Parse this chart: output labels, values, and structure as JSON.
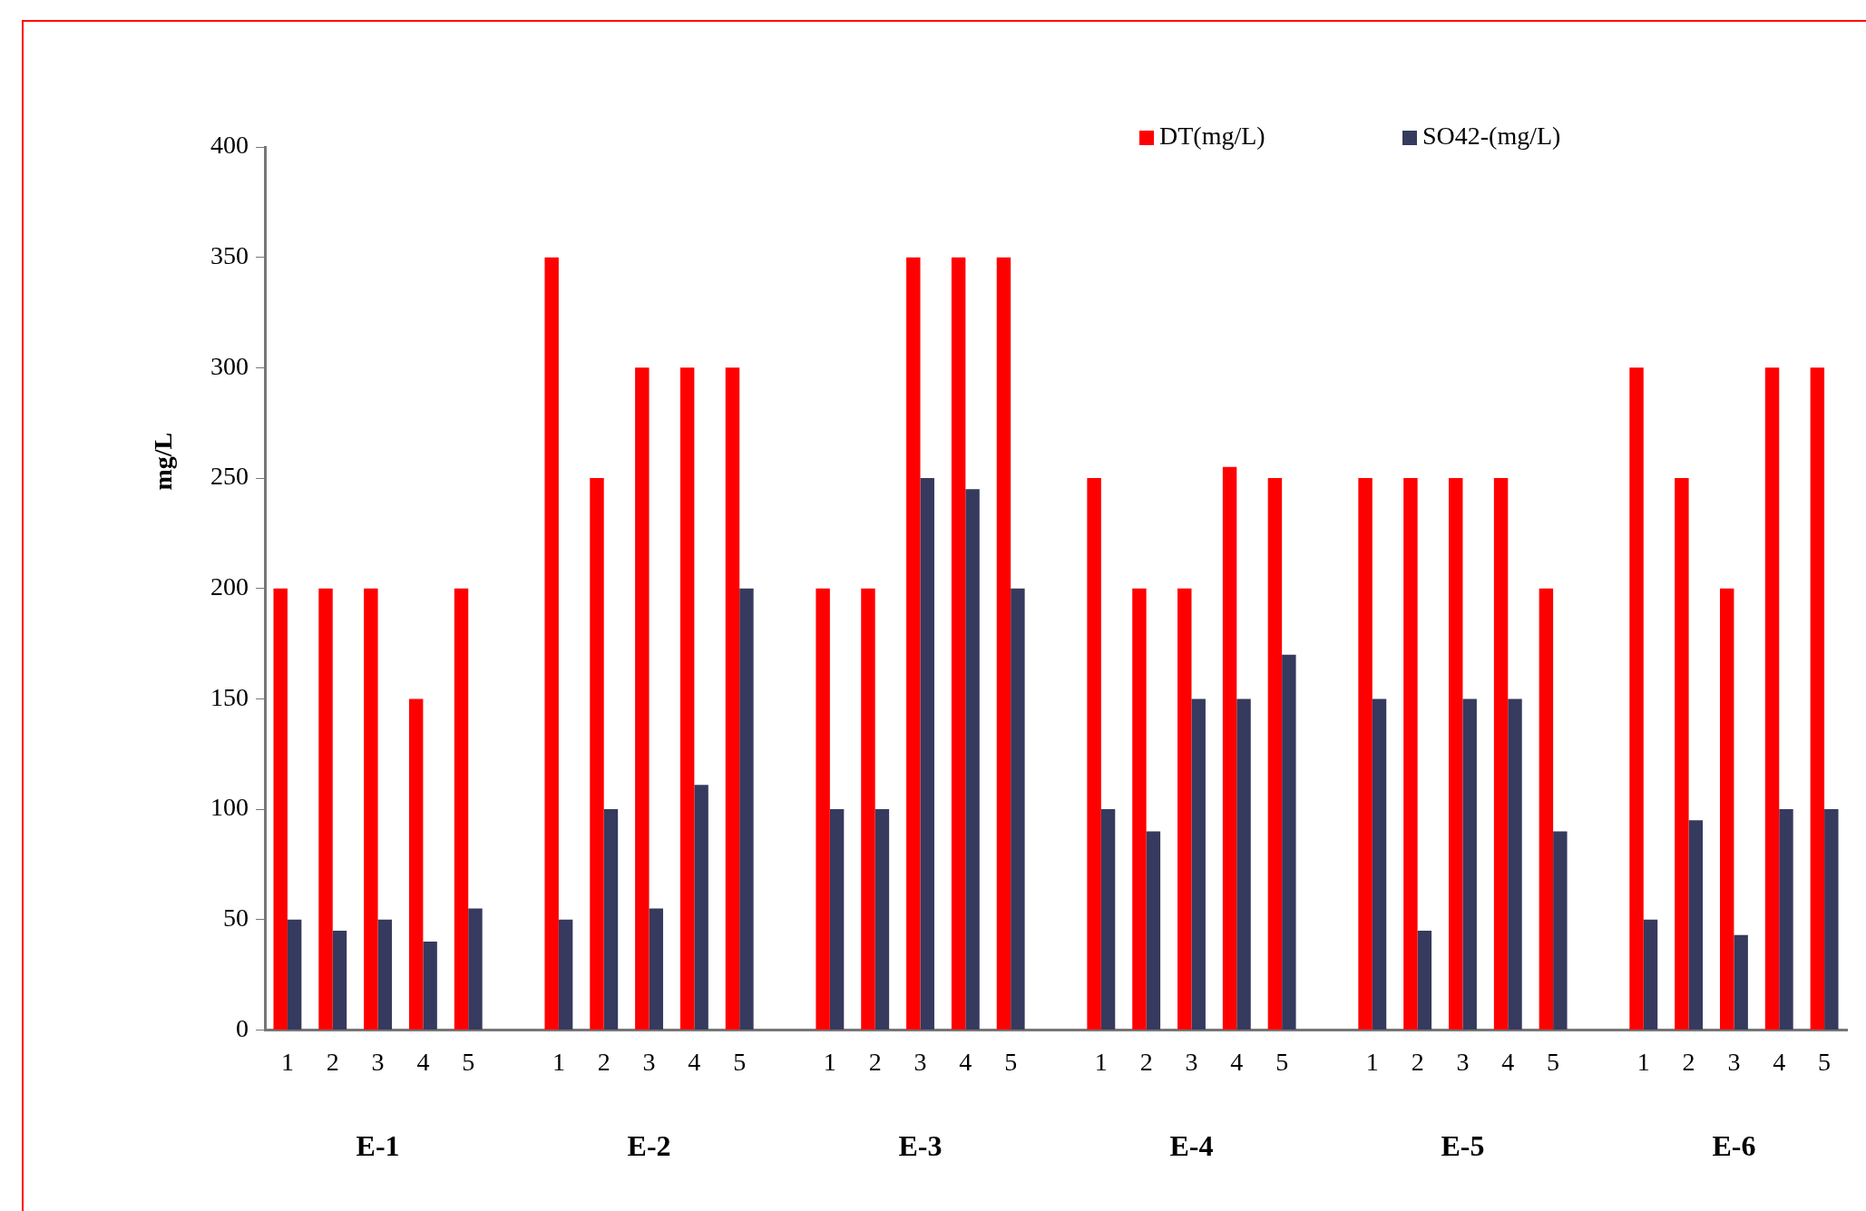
{
  "chart_data": {
    "type": "bar",
    "ylabel": "mg/L",
    "categories": [
      "1",
      "2",
      "3",
      "4",
      "5",
      null,
      "1",
      "2",
      "3",
      "4",
      "5",
      null,
      "1",
      "2",
      "3",
      "4",
      "5",
      null,
      "1",
      "2",
      "3",
      "4",
      "5",
      null,
      "1",
      "2",
      "3",
      "4",
      "5",
      null,
      "1",
      "2",
      "3",
      "4",
      "5"
    ],
    "series": [
      {
        "name": "DT(mg/L)",
        "color": "#ff0000",
        "values": [
          200,
          200,
          200,
          150,
          200,
          null,
          350,
          250,
          300,
          300,
          300,
          null,
          200,
          200,
          350,
          350,
          350,
          null,
          250,
          200,
          200,
          255,
          250,
          null,
          250,
          250,
          250,
          250,
          200,
          null,
          300,
          250,
          200,
          300,
          300
        ]
      },
      {
        "name": "SO42-(mg/L)",
        "color": "#363a5e",
        "values": [
          50,
          45,
          50,
          40,
          55,
          null,
          50,
          100,
          55,
          111,
          200,
          null,
          100,
          100,
          250,
          245,
          200,
          null,
          100,
          90,
          150,
          150,
          170,
          null,
          150,
          45,
          150,
          150,
          90,
          null,
          50,
          95,
          43,
          100,
          100
        ]
      }
    ],
    "ylim": [
      0,
      400
    ],
    "yticks": [
      0,
      50,
      100,
      150,
      200,
      250,
      300,
      350,
      400
    ],
    "grid": false,
    "legend": "top right",
    "annotations": [
      "E-1",
      "E-2",
      "E-3",
      "E-4",
      "E-5",
      "E-6"
    ]
  }
}
